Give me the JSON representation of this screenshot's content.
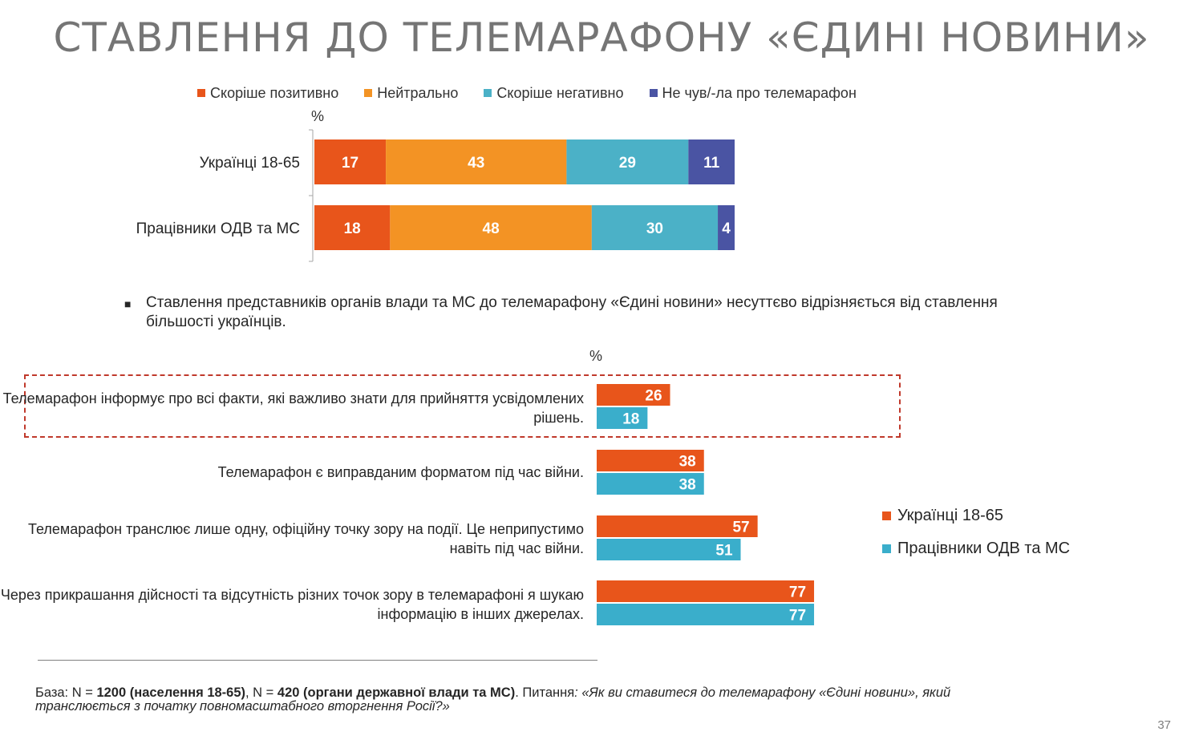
{
  "title": "СТАВЛЕННЯ ДО ТЕЛЕМАРАФОНУ «ЄДИНІ НОВИНИ»",
  "colors": {
    "positive": "#e8551b",
    "neutral": "#f39324",
    "negative": "#4bb1c7",
    "not_heard": "#4a54a3",
    "ua": "#e8551b",
    "odv": "#3aaecb"
  },
  "chart_data": [
    {
      "type": "bar",
      "orientation": "horizontal",
      "stacked": true,
      "unit_label": "%",
      "categories": [
        "Українці 18-65",
        "Працівники ОДВ та МС"
      ],
      "series": [
        {
          "name": "Скоріше позитивно",
          "values": [
            17,
            18
          ]
        },
        {
          "name": "Нейтрально",
          "values": [
            43,
            48
          ]
        },
        {
          "name": "Скоріше негативно",
          "values": [
            29,
            30
          ]
        },
        {
          "name": "Не чув/-ла про телемарафон",
          "values": [
            11,
            4
          ]
        }
      ],
      "legend_position": "top"
    },
    {
      "type": "bar",
      "orientation": "horizontal",
      "unit_label": "%",
      "categories": [
        "Телемарафон інформує про всі факти, які важливо знати для прийняття усвідомлених рішень.",
        "Телемарафон є виправданим форматом під час війни.",
        "Телемарафон транслює лише одну, офіційну точку зору на події. Це неприпустимо навіть під час війни.",
        "Через прикрашання дійсності та відсутність різних точок зору в телемарафоні я шукаю інформацію в інших джерелах."
      ],
      "series": [
        {
          "name": "Українці 18-65",
          "values": [
            26,
            38,
            57,
            77
          ]
        },
        {
          "name": "Працівники ОДВ та МС",
          "values": [
            18,
            38,
            51,
            77
          ]
        }
      ],
      "legend_position": "right"
    }
  ],
  "bullet": "Ставлення представників органів влади та МС до телемарафону «Єдині новини» несуттєво відрізняється від ставлення більшості українців.",
  "footer": {
    "base_prefix": "База: N = ",
    "base_n1": "1200 (населення 18-65)",
    "base_mid": ", N = ",
    "base_n2": "420 (органи державної влади та МС)",
    "question_prefix": ". Питання",
    "question": ": «Як ви ставитеся до телемарафону «Єдині новини», який транслюється з початку повномасштабного вторгнення Росії?»"
  },
  "page_number": "37"
}
